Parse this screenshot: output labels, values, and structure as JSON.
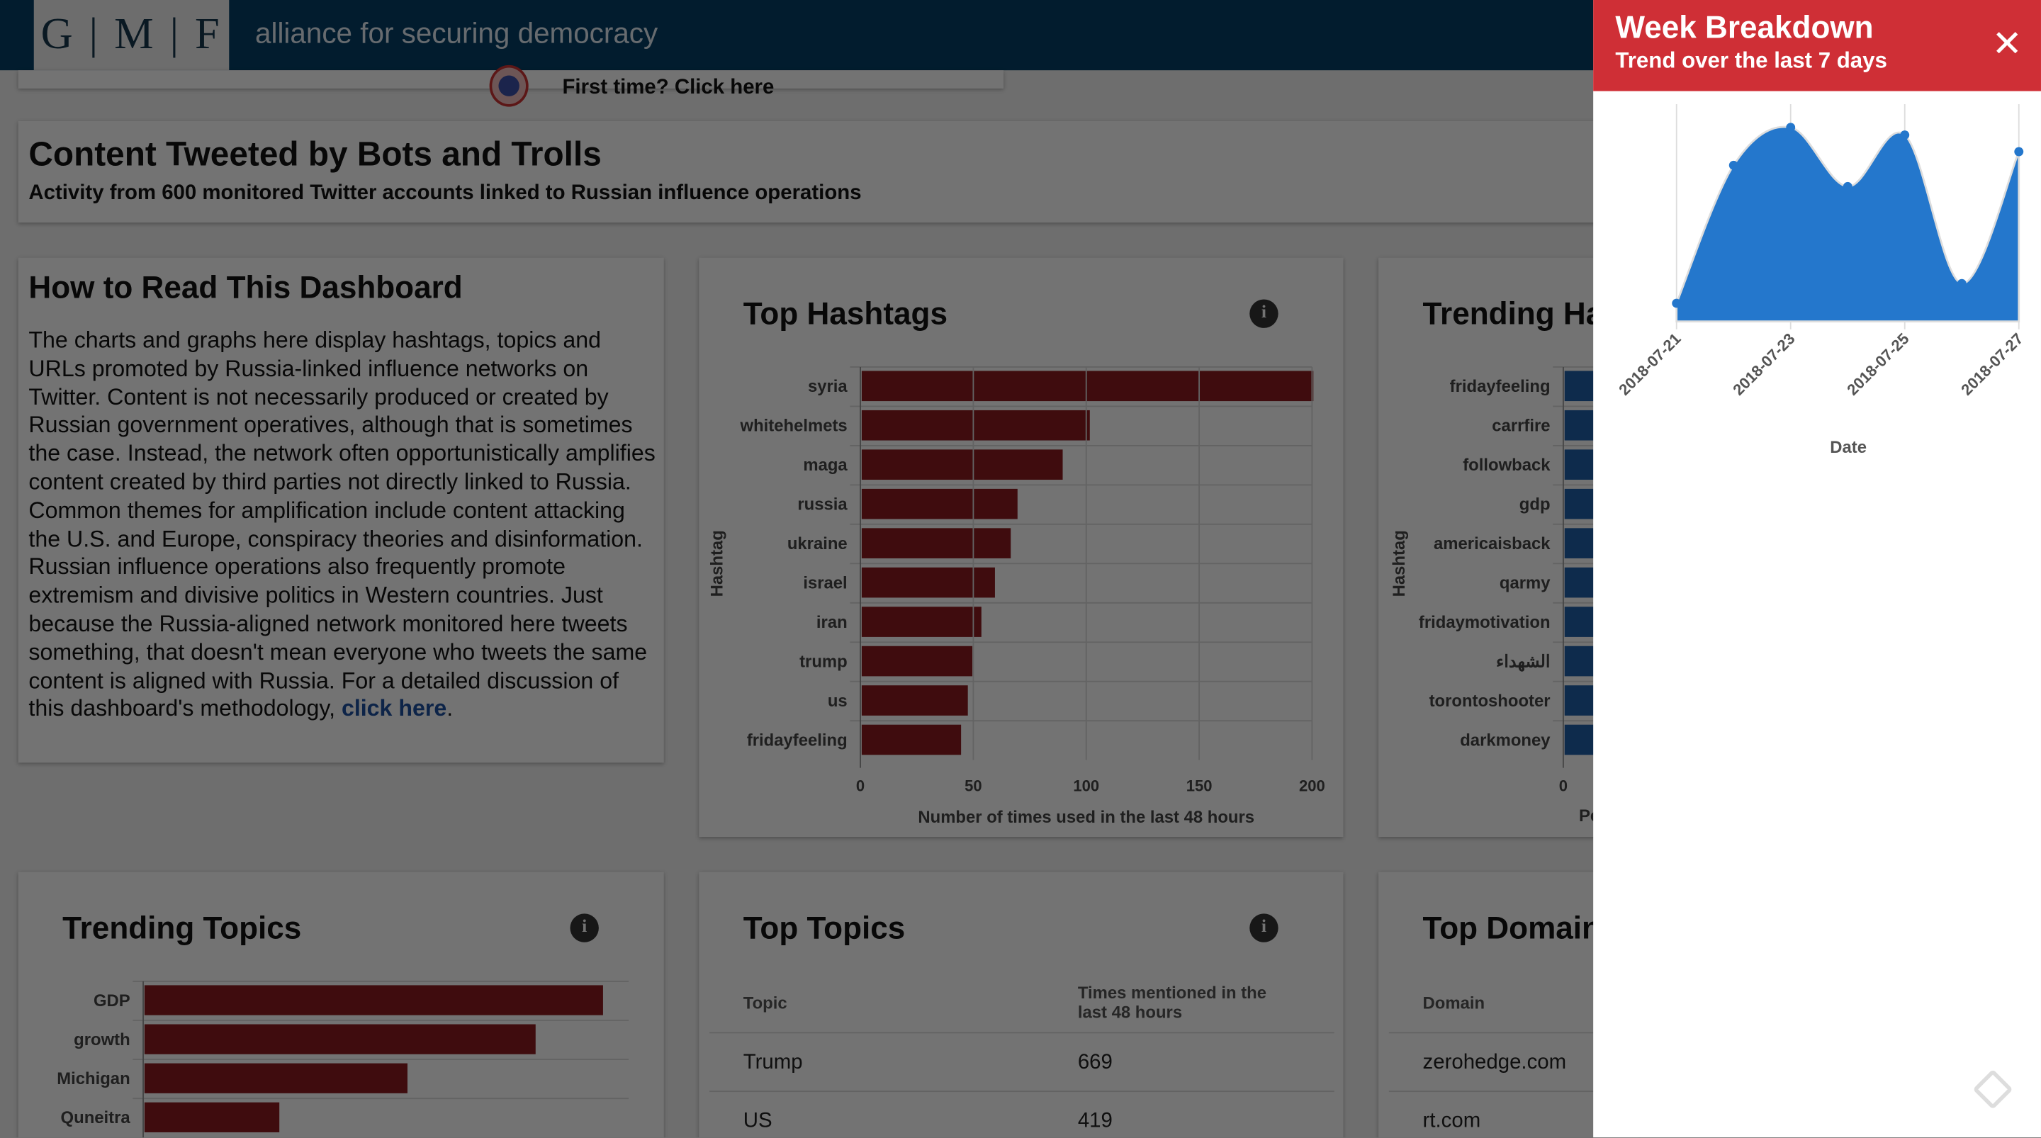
{
  "header": {
    "logo": "G | M | F",
    "brand": "alliance for securing democracy",
    "first_time": "First time? Click here"
  },
  "intro": {
    "title": "Content Tweeted by Bots and Trolls",
    "subtitle": "Activity from 600 monitored Twitter accounts linked to Russian influence operations"
  },
  "how_to": {
    "title": "How to Read This Dashboard",
    "text": "The charts and graphs here display hashtags, topics and URLs promoted by Russia-linked influence networks on Twitter. Content is not necessarily produced or created by Russian government operatives, although that is sometimes the case. Instead, the network often opportunistically amplifies content created by third parties not directly linked to Russia. Common themes for amplification include content attacking the U.S. and Europe, conspiracy theories and disinformation. Russian influence operations also frequently promote extremism and divisive politics in Western countries. Just because the Russia-aligned network monitored here tweets something, that doesn't mean everyone who tweets the same content is aligned with Russia. For a detailed discussion of this dashboard's methodology, ",
    "link": "click here",
    "end": "."
  },
  "top_topics": {
    "title": "Top Topics",
    "col1": "Topic",
    "col2": "Times mentioned in the last 48 hours",
    "rows": [
      {
        "topic": "Trump",
        "count": "669"
      },
      {
        "topic": "US",
        "count": "419"
      }
    ]
  },
  "top_domains": {
    "title": "Top Domain",
    "col1": "Domain",
    "rows": [
      "zerohedge.com",
      "rt.com"
    ]
  },
  "trending_hashtags_axis_partial": "Pe",
  "colors": {
    "red_bar": "#8b1a1e",
    "blue_bar": "#1f5fa8",
    "area": "#2477cc",
    "panel_header": "#cf2f36"
  },
  "panel": {
    "title": "Week Breakdown",
    "subtitle": "Trend over the last 7 days",
    "close_icon": "close-icon"
  },
  "chart_data": [
    {
      "type": "bar",
      "title": "Top Hashtags",
      "ylabel": "Hashtag",
      "xlabel": "Number of times used in the last 48 hours",
      "categories": [
        "syria",
        "whitehelmets",
        "maga",
        "russia",
        "ukraine",
        "israel",
        "iran",
        "trump",
        "us",
        "fridayfeeling"
      ],
      "values": [
        200,
        101,
        89,
        69,
        66,
        59,
        53,
        49,
        47,
        44
      ],
      "xlim": [
        0,
        200
      ],
      "xticks": [
        "0",
        "50",
        "100",
        "150",
        "200"
      ]
    },
    {
      "type": "bar",
      "title": "Trending Hashtags",
      "ylabel": "Hashtag",
      "categories": [
        "fridayfeeling",
        "carrfire",
        "followback",
        "gdp",
        "americaisback",
        "qarmy",
        "fridaymotivation",
        "الشهداء",
        "torontoshooter",
        "darkmoney"
      ],
      "xticks": [
        "0"
      ]
    },
    {
      "type": "bar",
      "title": "Trending Topics",
      "categories": [
        "GDP",
        "growth",
        "Michigan",
        "Quneitra"
      ],
      "values": [
        3.4,
        2.9,
        1.95,
        1.0
      ]
    },
    {
      "type": "area",
      "xlabel": "Date",
      "x": [
        "2018-07-21",
        "2018-07-22",
        "2018-07-23",
        "2018-07-24",
        "2018-07-25",
        "2018-07-26",
        "2018-07-27"
      ],
      "values": [
        60,
        515,
        640,
        445,
        615,
        125,
        560
      ],
      "xticks": [
        "2018-07-21",
        "2018-07-23",
        "2018-07-25",
        "2018-07-27"
      ]
    }
  ]
}
